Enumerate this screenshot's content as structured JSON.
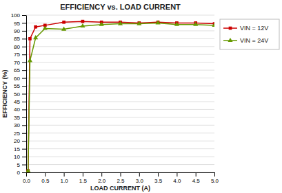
{
  "chart_data": {
    "type": "line",
    "title": "EFFICIENCY vs. LOAD CURRENT",
    "xlabel": "LOAD CURRENT (A)",
    "ylabel": "EFFICIENCY (%)",
    "x": [
      0.05,
      0.1,
      0.25,
      0.5,
      1.0,
      1.5,
      2.0,
      2.5,
      3.0,
      3.5,
      4.0,
      4.5,
      5.0
    ],
    "series": [
      {
        "name": "VIN = 12V",
        "color": "#cc0000",
        "marker": "square",
        "values": [
          1.0,
          85.0,
          92.5,
          93.5,
          95.5,
          96.0,
          95.5,
          95.5,
          95.0,
          95.5,
          95.0,
          95.0,
          94.5
        ]
      },
      {
        "name": "VIN = 24V",
        "color": "#669900",
        "marker": "triangle",
        "values": [
          1.0,
          71.0,
          85.5,
          91.5,
          91.0,
          93.0,
          94.0,
          94.5,
          94.5,
          95.0,
          94.0,
          94.0,
          93.5
        ]
      }
    ],
    "xlim": [
      0,
      5
    ],
    "ylim": [
      0,
      100
    ],
    "xticks": [
      {
        "value": 0,
        "label": "0.0"
      },
      {
        "value": 0.5,
        "label": "0.5"
      },
      {
        "value": 1,
        "label": "1.0"
      },
      {
        "value": 1.5,
        "label": "1.5"
      },
      {
        "value": 2,
        "label": "2.0"
      },
      {
        "value": 2.5,
        "label": "2.5"
      },
      {
        "value": 3,
        "label": "3.0"
      },
      {
        "value": 3.5,
        "label": "3.5"
      },
      {
        "value": 4,
        "label": "4.0"
      },
      {
        "value": 4.5,
        "label": "4.5"
      },
      {
        "value": 5,
        "label": "5.0"
      }
    ],
    "yticks": [
      0,
      5,
      10,
      15,
      20,
      25,
      30,
      35,
      40,
      45,
      50,
      55,
      60,
      65,
      70,
      75,
      80,
      85,
      90,
      95,
      100
    ],
    "grid": true,
    "legend": "right"
  }
}
